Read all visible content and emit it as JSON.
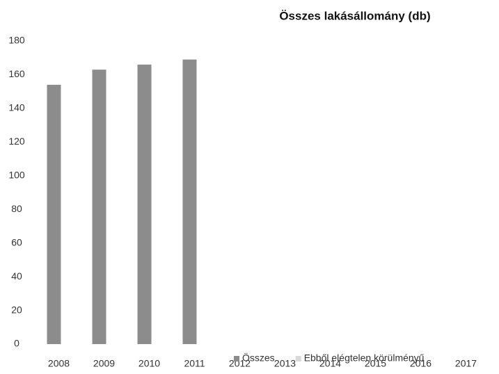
{
  "chart_data": {
    "type": "bar",
    "title": "Összes lakásállomány (db)",
    "categories": [
      "2008",
      "2009",
      "2010",
      "2011",
      "2012",
      "2013",
      "2014",
      "2015",
      "2016",
      "2017"
    ],
    "series": [
      {
        "name": "Összes",
        "color": "#8c8c8c",
        "values": [
          154,
          163,
          166,
          169,
          null,
          null,
          null,
          null,
          null,
          null
        ]
      },
      {
        "name": "Ebből elégtelen körülményű",
        "color": "#d9d9d9",
        "values": [
          null,
          null,
          null,
          null,
          null,
          null,
          null,
          null,
          null,
          null
        ]
      }
    ],
    "ylim": [
      0,
      180
    ],
    "yticks": [
      0,
      20,
      40,
      60,
      80,
      100,
      120,
      140,
      160,
      180
    ],
    "grid": false,
    "legend": "bottom"
  }
}
